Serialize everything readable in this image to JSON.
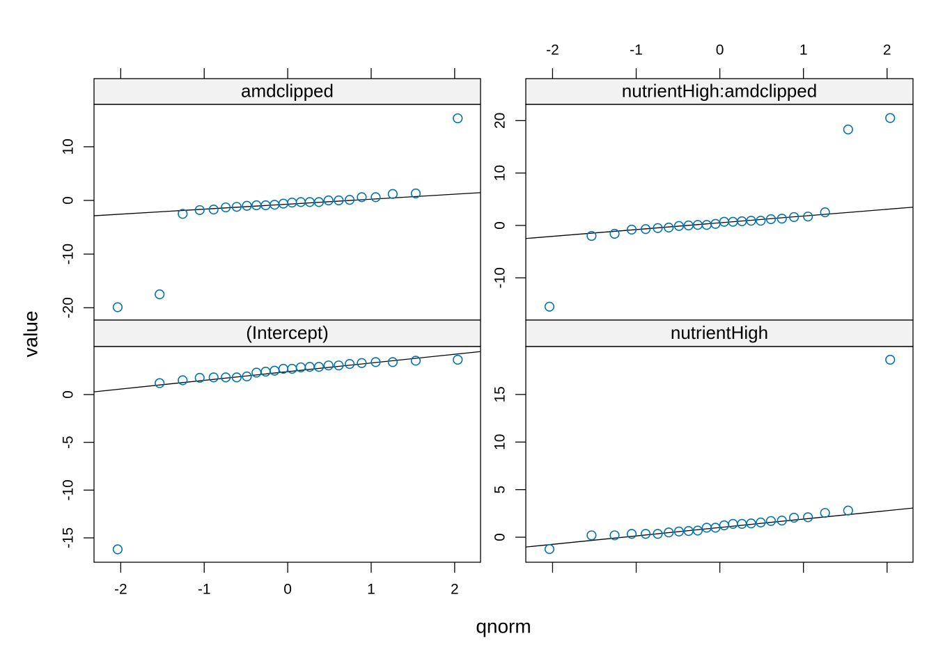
{
  "x_label": "qnorm",
  "y_label": "value",
  "chart_data": [
    {
      "type": "scatter",
      "title": "amdclipped",
      "color": "#0072b2",
      "xaxis": "top",
      "xtick_labels": false,
      "x": [
        -2.037,
        -1.534,
        -1.258,
        -1.054,
        -0.887,
        -0.742,
        -0.611,
        -0.489,
        -0.374,
        -0.264,
        -0.157,
        -0.052,
        0.052,
        0.157,
        0.264,
        0.374,
        0.489,
        0.611,
        0.742,
        0.887,
        1.054,
        1.258,
        1.534,
        2.037
      ],
      "y": [
        -19.9,
        -17.5,
        -2.5,
        -1.8,
        -1.7,
        -1.3,
        -1.2,
        -1.0,
        -0.9,
        -0.9,
        -0.8,
        -0.6,
        -0.4,
        -0.3,
        -0.3,
        -0.3,
        0,
        0,
        0.1,
        0.6,
        0.6,
        1.2,
        1.3,
        15.3
      ],
      "ref_line": {
        "intercept": -0.7,
        "slope": 0.93
      },
      "xlim": [
        -2.32,
        2.31
      ],
      "ylim": [
        -22.3,
        17.9
      ],
      "xticks": [
        -2,
        -1,
        0,
        1,
        2
      ],
      "yticks": [
        -20,
        -10,
        0,
        10
      ]
    },
    {
      "type": "scatter",
      "title": "(Intercept)",
      "color": "#0072b2",
      "xaxis": "bottom",
      "xtick_labels": true,
      "x": [
        -2.037,
        -1.534,
        -1.258,
        -1.054,
        -0.887,
        -0.742,
        -0.611,
        -0.489,
        -0.374,
        -0.264,
        -0.157,
        -0.052,
        0.052,
        0.157,
        0.264,
        0.374,
        0.489,
        0.611,
        0.742,
        0.887,
        1.054,
        1.258,
        1.534,
        2.037
      ],
      "y": [
        -16.2,
        1.2,
        1.5,
        1.75,
        1.8,
        1.8,
        1.8,
        1.9,
        2.3,
        2.4,
        2.5,
        2.7,
        2.7,
        2.85,
        2.9,
        2.9,
        3.05,
        3.05,
        3.2,
        3.3,
        3.4,
        3.4,
        3.55,
        3.65
      ],
      "ref_line": {
        "intercept": 2.4,
        "slope": 0.91
      },
      "xlim": [
        -2.32,
        2.31
      ],
      "ylim": [
        -17.55,
        5.03
      ],
      "xticks": [
        -2,
        -1,
        0,
        1,
        2
      ],
      "yticks": [
        -15,
        -10,
        -5,
        0
      ]
    },
    {
      "type": "scatter",
      "title": "nutrientHigh:amdclipped",
      "color": "#0072b2",
      "xaxis": "top",
      "xtick_labels": true,
      "x": [
        -2.037,
        -1.534,
        -1.258,
        -1.054,
        -0.887,
        -0.742,
        -0.611,
        -0.489,
        -0.374,
        -0.264,
        -0.157,
        -0.052,
        0.052,
        0.157,
        0.264,
        0.374,
        0.489,
        0.611,
        0.742,
        0.887,
        1.054,
        1.258,
        1.534,
        2.037
      ],
      "y": [
        -15.5,
        -2.0,
        -1.6,
        -0.8,
        -0.7,
        -0.5,
        -0.4,
        -0.1,
        0,
        0.1,
        0.1,
        0.3,
        0.7,
        0.7,
        0.8,
        0.9,
        0.9,
        1.2,
        1.3,
        1.6,
        1.7,
        2.5,
        18.3,
        20.5
      ],
      "ref_line": {
        "intercept": 0.5,
        "slope": 1.29
      },
      "xlim": [
        -2.32,
        2.31
      ],
      "ylim": [
        -18.06,
        23.1
      ],
      "xticks": [
        -2,
        -1,
        0,
        1,
        2
      ],
      "yticks": [
        -10,
        0,
        10,
        20
      ]
    },
    {
      "type": "scatter",
      "title": "nutrientHigh",
      "color": "#0072b2",
      "xaxis": "bottom",
      "xtick_labels": false,
      "x": [
        -2.037,
        -1.534,
        -1.258,
        -1.054,
        -0.887,
        -0.742,
        -0.611,
        -0.489,
        -0.374,
        -0.264,
        -0.157,
        -0.052,
        0.052,
        0.157,
        0.264,
        0.374,
        0.489,
        0.611,
        0.742,
        0.887,
        1.054,
        1.258,
        1.534,
        2.037
      ],
      "y": [
        -1.25,
        0.2,
        0.2,
        0.35,
        0.35,
        0.35,
        0.5,
        0.6,
        0.65,
        0.7,
        1.0,
        1.0,
        1.25,
        1.4,
        1.4,
        1.45,
        1.55,
        1.7,
        1.75,
        2.05,
        2.1,
        2.55,
        2.8,
        18.65
      ],
      "ref_line": {
        "intercept": 1.02,
        "slope": 0.885
      },
      "xlim": [
        -2.32,
        2.31
      ],
      "ylim": [
        -2.63,
        20.04
      ],
      "xticks": [
        -2,
        -1,
        0,
        1,
        2
      ],
      "yticks": [
        0,
        5,
        10,
        15
      ]
    }
  ]
}
